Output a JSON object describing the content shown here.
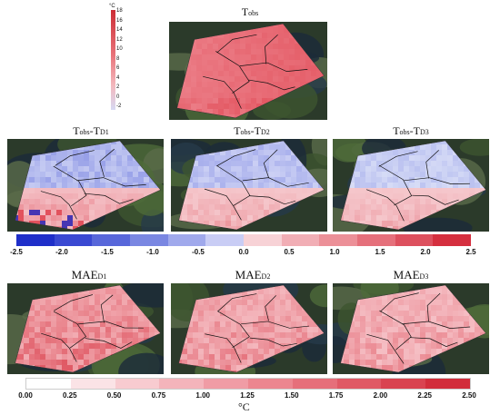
{
  "top_panel": {
    "title_main": "T",
    "title_sub": "obs",
    "scale_unit": "°C",
    "scale_ticks": [
      "18",
      "16",
      "14",
      "12",
      "10",
      "8",
      "6",
      "4",
      "2",
      "0",
      "-2"
    ]
  },
  "diff_row": {
    "panels": [
      {
        "t1": "T",
        "s1": "obs",
        "mid": "-T",
        "s2": "D1"
      },
      {
        "t1": "T",
        "s1": "obs",
        "mid": "-T",
        "s2": "D2"
      },
      {
        "t1": "T",
        "s1": "obs",
        "mid": "-T",
        "s2": "D3"
      }
    ],
    "colorbar": {
      "labels": [
        "-2.5",
        "-2.0",
        "-1.5",
        "-1.0",
        "-0.5",
        "0.0",
        "0.5",
        "1.0",
        "1.5",
        "2.0",
        "2.5"
      ],
      "colors": [
        "#1f2fc9",
        "#3a49d2",
        "#5867da",
        "#7a87e2",
        "#a0a9ec",
        "#c9cdf5",
        "#f7d2d6",
        "#f1aeb5",
        "#ec9098",
        "#e5707b",
        "#dd505e",
        "#d52f3f"
      ]
    }
  },
  "mae_row": {
    "panels": [
      {
        "t1": "MAE",
        "s1": "D1"
      },
      {
        "t1": "MAE",
        "s1": "D2"
      },
      {
        "t1": "MAE",
        "s1": "D3"
      }
    ],
    "colorbar": {
      "labels": [
        "0.00",
        "0.25",
        "0.50",
        "0.75",
        "1.00",
        "1.25",
        "1.50",
        "1.75",
        "2.00",
        "2.25",
        "2.50"
      ],
      "colors": [
        "#ffffff",
        "#fbe3e6",
        "#f8cbd0",
        "#f4b4bb",
        "#f09ca5",
        "#ec868f",
        "#e66f7a",
        "#e05965",
        "#d94350",
        "#d22d3b"
      ]
    },
    "unit": "°C"
  }
}
